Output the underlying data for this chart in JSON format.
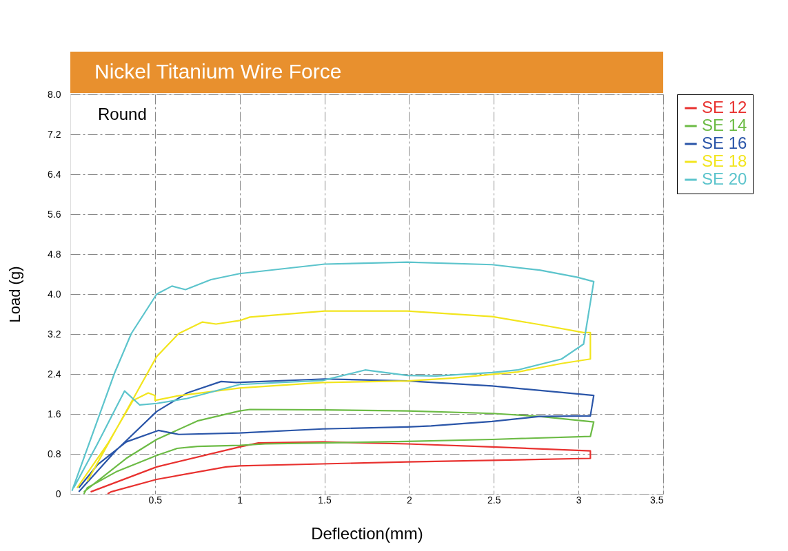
{
  "chart_data": {
    "type": "line",
    "title": "Nickel Titanium Wire Force",
    "xlabel": "Deflection(mm)",
    "ylabel": "Load (g)",
    "annotations": [
      "Round"
    ],
    "xlim": [
      0,
      3.5
    ],
    "xticks": [
      0.5,
      1,
      1.5,
      2,
      2.5,
      3,
      3.5
    ],
    "ylim": [
      0,
      8
    ],
    "yticks": [
      0,
      0.8,
      1.6,
      2.4,
      3.2,
      {
        "value": 4,
        "label": "4.0"
      },
      4.8,
      5.6,
      6.4,
      7.2,
      {
        "value": 8,
        "label": "8.0"
      }
    ],
    "grid": true,
    "legend": "top right",
    "marker": "none",
    "line_style": "solid",
    "series": [
      {
        "name": "SE 12",
        "color": "#e8312f",
        "x": [
          0.22,
          0.24,
          0.51,
          0.92,
          1.0,
          1.49,
          1.99,
          2.49,
          3.07,
          3.07,
          2.49,
          1.99,
          1.49,
          1.11,
          1.0,
          0.51,
          0.12
        ],
        "values": [
          0,
          0.04,
          0.29,
          0.54,
          0.56,
          0.6,
          0.64,
          0.67,
          0.71,
          0.86,
          0.94,
          1.0,
          1.04,
          1.02,
          0.94,
          0.54,
          0.04
        ]
      },
      {
        "name": "SE 14",
        "color": "#6cbb45",
        "x": [
          0.08,
          0.1,
          0.27,
          0.51,
          0.63,
          0.75,
          1.0,
          1.15,
          1.49,
          1.99,
          2.49,
          3.07,
          3.09,
          2.77,
          2.49,
          1.99,
          1.5,
          1.06,
          1.0,
          0.75,
          0.51,
          0.33,
          0.08
        ],
        "values": [
          0,
          0.12,
          0.44,
          0.77,
          0.91,
          0.95,
          0.97,
          1.0,
          1.02,
          1.05,
          1.09,
          1.15,
          1.44,
          1.55,
          1.61,
          1.66,
          1.68,
          1.69,
          1.66,
          1.46,
          1.09,
          0.71,
          0.04
        ]
      },
      {
        "name": "SE 16",
        "color": "#2a55a8",
        "x": [
          0.05,
          0.16,
          0.33,
          0.52,
          0.64,
          1.0,
          1.49,
          1.99,
          2.13,
          2.49,
          2.77,
          3.07,
          3.09,
          2.49,
          1.99,
          1.5,
          0.98,
          0.89,
          0.69,
          0.51,
          0.27,
          0.05
        ],
        "values": [
          0.12,
          0.58,
          1.04,
          1.27,
          1.19,
          1.22,
          1.3,
          1.34,
          1.36,
          1.45,
          1.55,
          1.56,
          1.97,
          2.16,
          2.26,
          2.3,
          2.23,
          2.25,
          2.02,
          1.65,
          0.87,
          0.04
        ]
      },
      {
        "name": "SE 18",
        "color": "#f2e51e",
        "x": [
          0.04,
          0.22,
          0.37,
          0.46,
          0.5,
          0.5,
          0.63,
          1.0,
          1.49,
          1.99,
          2.26,
          2.64,
          2.9,
          3.07,
          3.07,
          3.03,
          2.77,
          2.49,
          1.99,
          1.5,
          1.06,
          1.0,
          0.86,
          0.78,
          0.64,
          0.51,
          0.29,
          0.1
        ],
        "values": [
          0.12,
          1.0,
          1.87,
          2.02,
          1.97,
          1.87,
          1.96,
          2.12,
          2.23,
          2.26,
          2.32,
          2.44,
          2.61,
          2.7,
          3.23,
          3.23,
          3.39,
          3.55,
          3.66,
          3.66,
          3.54,
          3.47,
          3.4,
          3.44,
          3.21,
          2.75,
          1.41,
          0.25
        ]
      },
      {
        "name": "SE 20",
        "color": "#5cc4cc",
        "x": [
          0.02,
          0.16,
          0.32,
          0.41,
          0.51,
          0.69,
          1.0,
          1.49,
          1.74,
          1.99,
          2.16,
          2.49,
          2.64,
          2.9,
          3.03,
          3.09,
          2.99,
          2.77,
          2.49,
          1.99,
          1.5,
          1.0,
          0.83,
          0.68,
          0.6,
          0.51,
          0.36,
          0.26,
          0.01
        ],
        "values": [
          0.12,
          1.0,
          2.06,
          1.78,
          1.81,
          1.91,
          2.19,
          2.27,
          2.48,
          2.37,
          2.36,
          2.43,
          2.48,
          2.7,
          3.0,
          4.25,
          4.34,
          4.48,
          4.59,
          4.64,
          4.6,
          4.41,
          4.29,
          4.09,
          4.16,
          4.0,
          3.21,
          2.41,
          0.06
        ]
      }
    ]
  }
}
